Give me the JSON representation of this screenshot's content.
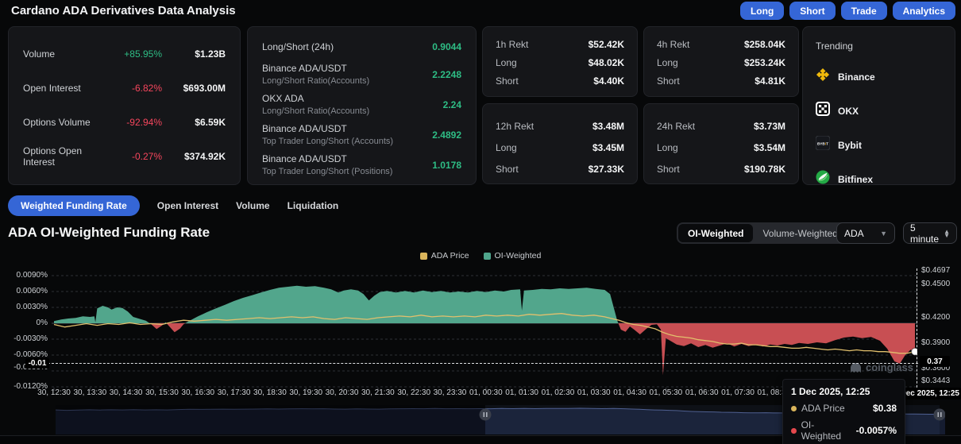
{
  "header": {
    "title": "Cardano ADA Derivatives Data Analysis",
    "buttons": [
      "Long",
      "Short",
      "Trade",
      "Analytics"
    ]
  },
  "labels": {
    "long": "Long",
    "short": "Short"
  },
  "stats": {
    "rows": [
      {
        "label": "Volume",
        "pct": "+85.95%",
        "direction": "up",
        "value": "$1.23B"
      },
      {
        "label": "Open Interest",
        "pct": "-6.82%",
        "direction": "down",
        "value": "$693.00M"
      },
      {
        "label": "Options Volume",
        "pct": "-92.94%",
        "direction": "down",
        "value": "$6.59K"
      },
      {
        "label": "Options Open Interest",
        "pct": "-0.27%",
        "direction": "down",
        "value": "$374.92K"
      }
    ]
  },
  "longshort": {
    "rows": [
      {
        "title": "Long/Short (24h)",
        "subtitle": "",
        "value": "0.9044"
      },
      {
        "title": "Binance ADA/USDT",
        "subtitle": "Long/Short Ratio(Accounts)",
        "value": "2.2248"
      },
      {
        "title": "OKX ADA",
        "subtitle": "Long/Short Ratio(Accounts)",
        "value": "2.24"
      },
      {
        "title": "Binance ADA/USDT",
        "subtitle": "Top Trader Long/Short (Accounts)",
        "value": "2.4892"
      },
      {
        "title": "Binance ADA/USDT",
        "subtitle": "Top Trader Long/Short (Positions)",
        "value": "1.0178"
      }
    ]
  },
  "rekt_cards": [
    {
      "period": "1h Rekt",
      "total": "$52.42K",
      "long": "$48.02K",
      "short": "$4.40K"
    },
    {
      "period": "4h Rekt",
      "total": "$258.04K",
      "long": "$253.24K",
      "short": "$4.81K"
    },
    {
      "period": "12h Rekt",
      "total": "$3.48M",
      "long": "$3.45M",
      "short": "$27.33K"
    },
    {
      "period": "24h Rekt",
      "total": "$3.73M",
      "long": "$3.54M",
      "short": "$190.78K"
    }
  ],
  "trending": {
    "title": "Trending",
    "items": [
      {
        "name": "Binance",
        "icon": "binance-icon"
      },
      {
        "name": "OKX",
        "icon": "okx-icon"
      },
      {
        "name": "Bybit",
        "icon": "bybit-icon"
      },
      {
        "name": "Bitfinex",
        "icon": "bitfinex-icon"
      }
    ]
  },
  "tabs": [
    {
      "label": "Weighted Funding Rate",
      "active": true
    },
    {
      "label": "Open Interest",
      "active": false
    },
    {
      "label": "Volume",
      "active": false
    },
    {
      "label": "Liquidation",
      "active": false
    }
  ],
  "chart_header": {
    "title": "ADA OI-Weighted Funding Rate",
    "toggle": [
      "OI-Weighted",
      "Volume-Weighted"
    ],
    "active_toggle": "OI-Weighted",
    "symbol_select": "ADA",
    "interval_select": "5 minute"
  },
  "watermark": "coinglass",
  "crosshair": {
    "left_label": "-0.01",
    "right_label": "0.37",
    "x_label": "1 Dec 2025, 12:25"
  },
  "tooltip": {
    "date": "1 Dec 2025, 12:25",
    "rows": [
      {
        "name": "ADA Price",
        "value": "$0.38",
        "color": "#d9b45b"
      },
      {
        "name": "OI-Weighted",
        "value": "-0.0057%",
        "color": "#e5484d"
      }
    ]
  },
  "colors": {
    "accent": "#3566d6",
    "green_text": "#2ebd85",
    "red_text": "#f6465d",
    "area_positive": "#52a68c",
    "area_negative": "#c84f53",
    "price_line": "#e2c06d",
    "grid": "#2c2f35",
    "zero_line": "#46494f"
  },
  "chart_data": {
    "type": "area",
    "title": "ADA OI-Weighted Funding Rate",
    "legend": [
      {
        "label": "ADA Price",
        "color": "#d9b45b"
      },
      {
        "label": "OI-Weighted",
        "color": "#4fa58c"
      }
    ],
    "left_axis": {
      "unit": "%",
      "ticks": [
        "0.0090%",
        "0.0060%",
        "0.0030%",
        "0%",
        "-0.0030%",
        "-0.0060%",
        "-0.0090%",
        "-0.0120%"
      ],
      "ylim": [
        -0.012,
        0.009
      ]
    },
    "right_axis": {
      "unit": "$",
      "ticks": [
        "$0.4697",
        "$0.4500",
        "$0.4200",
        "$0.3900",
        "$0.3600",
        "$0.3443"
      ],
      "ylim": [
        0.3443,
        0.4697
      ]
    },
    "x_axis": {
      "labels": [
        "30, 12:30",
        "30, 13:30",
        "30, 14:30",
        "30, 15:30",
        "30, 16:30",
        "30, 17:30",
        "30, 18:30",
        "30, 19:30",
        "30, 20:30",
        "30, 21:30",
        "30, 22:30",
        "30, 23:30",
        "01, 00:30",
        "01, 01:30",
        "01, 02:30",
        "01, 03:30",
        "01, 04:30",
        "01, 05:30",
        "01, 06:30",
        "01, 07:30",
        "01, 08:30"
      ],
      "start_hour": 12.5,
      "end_hour": 36.42
    },
    "series": [
      {
        "name": "OI-Weighted",
        "type": "area",
        "unit": "%",
        "points": [
          [
            12.5,
            0.0004
          ],
          [
            12.7,
            0.0007
          ],
          [
            12.9,
            0.0009
          ],
          [
            13.1,
            0.001
          ],
          [
            13.3,
            0.0013
          ],
          [
            13.5,
            0.0012
          ],
          [
            13.62,
            0.0013
          ],
          [
            13.65,
            0.0002
          ],
          [
            13.7,
            0.0028
          ],
          [
            13.85,
            0.0033
          ],
          [
            14.0,
            0.003
          ],
          [
            14.1,
            0.0026
          ],
          [
            14.25,
            0.003
          ],
          [
            14.4,
            0.0029
          ],
          [
            14.55,
            0.0022
          ],
          [
            14.7,
            0.0012
          ],
          [
            14.9,
            0.0008
          ],
          [
            15.05,
            0.0005
          ],
          [
            15.2,
            -0.0002
          ],
          [
            15.35,
            -0.0011
          ],
          [
            15.5,
            -0.0004
          ],
          [
            15.6,
            0.0002
          ],
          [
            15.72,
            -0.0007
          ],
          [
            15.85,
            -0.0017
          ],
          [
            16.0,
            -0.001
          ],
          [
            16.1,
            -0.0002
          ],
          [
            16.25,
            0.0004
          ],
          [
            16.5,
            0.0013
          ],
          [
            16.75,
            0.0021
          ],
          [
            17.0,
            0.0028
          ],
          [
            17.25,
            0.0035
          ],
          [
            17.5,
            0.0042
          ],
          [
            17.75,
            0.0048
          ],
          [
            18.0,
            0.0053
          ],
          [
            18.25,
            0.0058
          ],
          [
            18.5,
            0.0063
          ],
          [
            18.75,
            0.0067
          ],
          [
            19.0,
            0.0069
          ],
          [
            19.25,
            0.0071
          ],
          [
            19.5,
            0.0069
          ],
          [
            19.75,
            0.007
          ],
          [
            20.0,
            0.0067
          ],
          [
            20.2,
            0.0064
          ],
          [
            20.4,
            0.0058
          ],
          [
            20.55,
            0.0062
          ],
          [
            20.75,
            0.0064
          ],
          [
            20.95,
            0.0062
          ],
          [
            21.1,
            0.0055
          ],
          [
            21.25,
            0.0043
          ],
          [
            21.4,
            0.0052
          ],
          [
            21.55,
            0.0059
          ],
          [
            21.75,
            0.0061
          ],
          [
            22.0,
            0.0058
          ],
          [
            22.25,
            0.0061
          ],
          [
            22.5,
            0.0058
          ],
          [
            22.75,
            0.0062
          ],
          [
            23.0,
            0.0059
          ],
          [
            23.25,
            0.0061
          ],
          [
            23.5,
            0.0058
          ],
          [
            23.75,
            0.006
          ],
          [
            24.0,
            0.0058
          ],
          [
            24.25,
            0.0061
          ],
          [
            24.5,
            0.0059
          ],
          [
            24.75,
            0.0062
          ],
          [
            25.0,
            0.006
          ],
          [
            25.2,
            0.0063
          ],
          [
            25.45,
            0.0064
          ],
          [
            25.5,
            0.0024
          ],
          [
            25.56,
            0.0062
          ],
          [
            25.8,
            0.0063
          ],
          [
            26.05,
            0.0065
          ],
          [
            26.3,
            0.0064
          ],
          [
            26.55,
            0.0066
          ],
          [
            26.8,
            0.0065
          ],
          [
            27.05,
            0.0066
          ],
          [
            27.3,
            0.0067
          ],
          [
            27.55,
            0.0065
          ],
          [
            27.8,
            0.0063
          ],
          [
            27.95,
            0.0055
          ],
          [
            28.05,
            0.003
          ],
          [
            28.15,
            0.0005
          ],
          [
            28.25,
            -0.0012
          ],
          [
            28.38,
            -0.0016
          ],
          [
            28.5,
            -0.0006
          ],
          [
            28.62,
            -0.0012
          ],
          [
            28.78,
            -0.0021
          ],
          [
            28.95,
            -0.0011
          ],
          [
            29.1,
            -0.0003
          ],
          [
            29.25,
            -0.0002
          ],
          [
            29.36,
            -0.0012
          ],
          [
            29.42,
            -0.0098
          ],
          [
            29.5,
            -0.0028
          ],
          [
            29.65,
            -0.0034
          ],
          [
            29.8,
            -0.004
          ],
          [
            30.0,
            -0.0043
          ],
          [
            30.2,
            -0.0038
          ],
          [
            30.4,
            -0.0045
          ],
          [
            30.6,
            -0.0041
          ],
          [
            30.8,
            -0.0046
          ],
          [
            31.0,
            -0.0042
          ],
          [
            31.2,
            -0.0038
          ],
          [
            31.4,
            -0.0044
          ],
          [
            31.6,
            -0.0039
          ],
          [
            31.8,
            -0.0043
          ],
          [
            32.0,
            -0.004
          ],
          [
            32.2,
            -0.0044
          ],
          [
            32.4,
            -0.004
          ],
          [
            32.6,
            -0.0042
          ],
          [
            32.8,
            -0.0039
          ],
          [
            33.0,
            -0.0041
          ],
          [
            33.2,
            -0.0037
          ],
          [
            33.45,
            -0.0039
          ],
          [
            33.7,
            -0.0036
          ],
          [
            33.95,
            -0.0038
          ],
          [
            34.2,
            -0.0032
          ],
          [
            34.45,
            -0.0027
          ],
          [
            34.7,
            -0.0025
          ],
          [
            34.95,
            -0.0028
          ],
          [
            35.2,
            -0.0026
          ],
          [
            35.45,
            -0.0033
          ],
          [
            35.65,
            -0.0048
          ],
          [
            35.85,
            -0.0072
          ],
          [
            36.0,
            -0.0076
          ],
          [
            36.15,
            -0.006
          ],
          [
            36.3,
            -0.005
          ],
          [
            36.42,
            -0.0057
          ]
        ]
      },
      {
        "name": "ADA Price",
        "type": "line",
        "unit": "$",
        "points": [
          [
            12.5,
            0.412
          ],
          [
            12.8,
            0.409
          ],
          [
            13.1,
            0.411
          ],
          [
            13.4,
            0.413
          ],
          [
            13.7,
            0.411
          ],
          [
            14.0,
            0.413
          ],
          [
            14.3,
            0.412
          ],
          [
            14.6,
            0.414
          ],
          [
            14.9,
            0.412
          ],
          [
            15.2,
            0.413
          ],
          [
            15.5,
            0.412
          ],
          [
            15.8,
            0.415
          ],
          [
            16.1,
            0.417
          ],
          [
            16.4,
            0.416
          ],
          [
            16.7,
            0.417
          ],
          [
            17.0,
            0.418
          ],
          [
            17.3,
            0.417
          ],
          [
            17.6,
            0.418
          ],
          [
            17.9,
            0.419
          ],
          [
            18.2,
            0.42
          ],
          [
            18.5,
            0.419
          ],
          [
            18.8,
            0.42
          ],
          [
            19.1,
            0.421
          ],
          [
            19.4,
            0.42
          ],
          [
            19.7,
            0.421
          ],
          [
            20.0,
            0.419
          ],
          [
            20.3,
            0.418
          ],
          [
            20.6,
            0.42
          ],
          [
            20.9,
            0.419
          ],
          [
            21.2,
            0.418
          ],
          [
            21.5,
            0.42
          ],
          [
            21.8,
            0.421
          ],
          [
            22.1,
            0.422
          ],
          [
            22.4,
            0.421
          ],
          [
            22.7,
            0.423
          ],
          [
            23.0,
            0.421
          ],
          [
            23.3,
            0.422
          ],
          [
            23.6,
            0.421
          ],
          [
            23.9,
            0.422
          ],
          [
            24.2,
            0.421
          ],
          [
            24.5,
            0.423
          ],
          [
            24.8,
            0.422
          ],
          [
            25.1,
            0.423
          ],
          [
            25.4,
            0.422
          ],
          [
            25.7,
            0.424
          ],
          [
            26.0,
            0.423
          ],
          [
            26.3,
            0.424
          ],
          [
            26.6,
            0.425
          ],
          [
            26.9,
            0.423
          ],
          [
            27.2,
            0.422
          ],
          [
            27.5,
            0.423
          ],
          [
            27.8,
            0.421
          ],
          [
            28.0,
            0.419
          ],
          [
            28.2,
            0.417
          ],
          [
            28.4,
            0.414
          ],
          [
            28.6,
            0.412
          ],
          [
            28.8,
            0.411
          ],
          [
            29.0,
            0.409
          ],
          [
            29.2,
            0.407
          ],
          [
            29.4,
            0.403
          ],
          [
            29.6,
            0.4
          ],
          [
            29.8,
            0.398
          ],
          [
            30.0,
            0.397
          ],
          [
            30.2,
            0.396
          ],
          [
            30.4,
            0.394
          ],
          [
            30.6,
            0.393
          ],
          [
            30.8,
            0.392
          ],
          [
            31.0,
            0.39
          ],
          [
            31.2,
            0.389
          ],
          [
            31.4,
            0.389
          ],
          [
            31.6,
            0.39
          ],
          [
            31.8,
            0.388
          ],
          [
            32.0,
            0.388
          ],
          [
            32.2,
            0.387
          ],
          [
            32.4,
            0.386
          ],
          [
            32.6,
            0.386
          ],
          [
            32.8,
            0.385
          ],
          [
            33.0,
            0.384
          ],
          [
            33.2,
            0.384
          ],
          [
            33.4,
            0.385
          ],
          [
            33.6,
            0.384
          ],
          [
            33.8,
            0.383
          ],
          [
            34.0,
            0.382
          ],
          [
            34.2,
            0.383
          ],
          [
            34.4,
            0.382
          ],
          [
            34.6,
            0.381
          ],
          [
            34.8,
            0.382
          ],
          [
            35.0,
            0.381
          ],
          [
            35.2,
            0.381
          ],
          [
            35.4,
            0.38
          ],
          [
            35.6,
            0.38
          ],
          [
            35.8,
            0.379
          ],
          [
            36.0,
            0.378
          ],
          [
            36.2,
            0.378
          ],
          [
            36.42,
            0.38
          ]
        ]
      }
    ]
  }
}
